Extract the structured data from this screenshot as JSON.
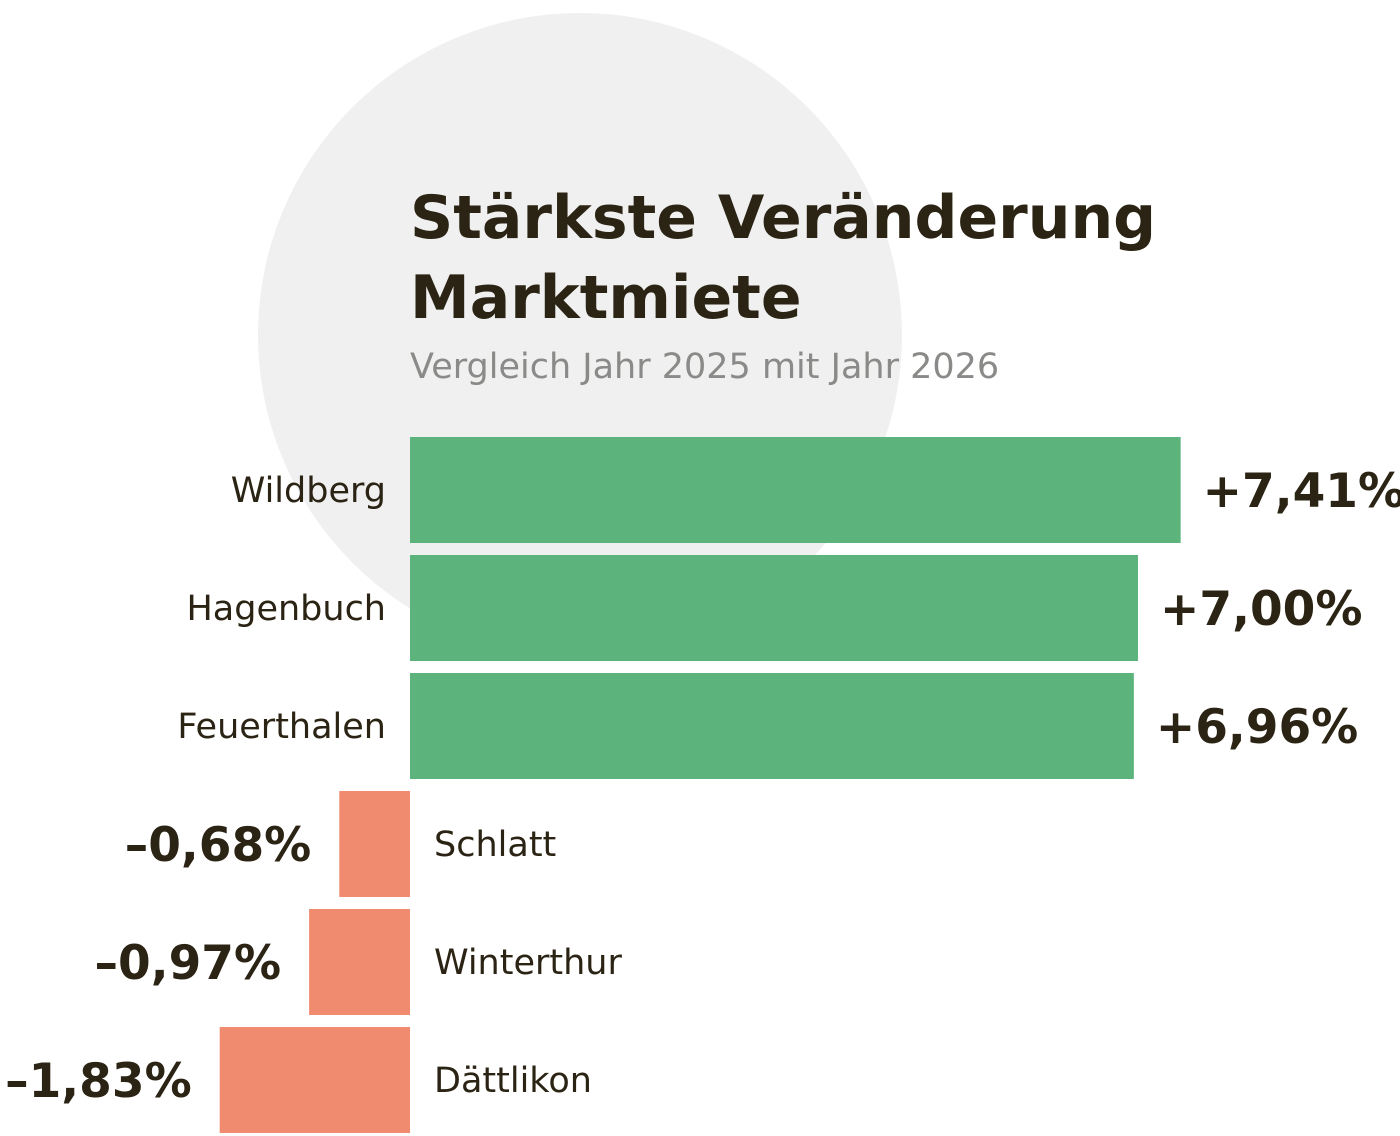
{
  "chart_data": {
    "type": "bar",
    "orientation": "horizontal",
    "title_lines": [
      "Stärkste Veränderung",
      "Marktmiete"
    ],
    "subtitle": "Vergleich Jahr 2025 mit Jahr 2026",
    "categories": [
      "Wildberg",
      "Hagenbuch",
      "Feuerthalen",
      "Schlatt",
      "Winterthur",
      "Dättlikon"
    ],
    "values": [
      7.41,
      7.0,
      6.96,
      -0.68,
      -0.97,
      -1.83
    ],
    "value_labels": [
      "+7,41%",
      "+7,00%",
      "+6,96%",
      "–0,68%",
      "–0,97%",
      "–1,83%"
    ],
    "unit": "%",
    "colors": {
      "positive": "#5cb47c",
      "negative": "#f08b70",
      "circle": "#f0f0f0",
      "text": "#2b2414",
      "subtitle": "#8a8a88"
    }
  }
}
